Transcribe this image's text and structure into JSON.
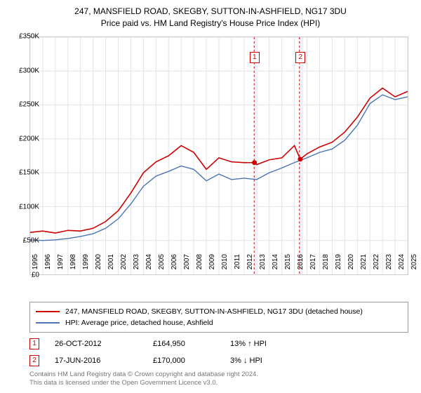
{
  "title_line1": "247, MANSFIELD ROAD, SKEGBY, SUTTON-IN-ASHFIELD, NG17 3DU",
  "title_line2": "Price paid vs. HM Land Registry's House Price Index (HPI)",
  "chart": {
    "type": "line",
    "background_color": "#ffffff",
    "border_color": "#cccccc",
    "grid_color": "#e4e4e4",
    "highlight_band_color": "#ecf1f8",
    "highlight_line_color": "#cc0000",
    "x_min": 1995,
    "x_max": 2025,
    "y_min": 0,
    "y_max": 350000,
    "y_tick_step": 50000,
    "y_tick_labels": [
      "£0",
      "£50K",
      "£100K",
      "£150K",
      "£200K",
      "£250K",
      "£300K",
      "£350K"
    ],
    "x_tick_labels": [
      "1995",
      "1996",
      "1997",
      "1998",
      "1999",
      "2000",
      "2001",
      "2002",
      "2003",
      "2004",
      "2005",
      "2006",
      "2007",
      "2008",
      "2009",
      "2010",
      "2011",
      "2012",
      "2013",
      "2014",
      "2015",
      "2016",
      "2017",
      "2018",
      "2019",
      "2020",
      "2021",
      "2022",
      "2023",
      "2024",
      "2025"
    ],
    "highlight_bands": [
      {
        "x_start": 2012.8,
        "x_end": 2013.1
      },
      {
        "x_start": 2016.4,
        "x_end": 2016.7
      }
    ],
    "sale_markers": [
      {
        "label": "1",
        "x": 2012.82,
        "y_offset": -18
      },
      {
        "label": "2",
        "x": 2016.46,
        "y_offset": -18
      }
    ],
    "sale_points": [
      {
        "x": 2012.82,
        "y": 164950
      },
      {
        "x": 2016.46,
        "y": 170000
      }
    ],
    "series": [
      {
        "name": "price_paid",
        "color": "#cc0000",
        "width": 1.6,
        "data": [
          [
            1995,
            62000
          ],
          [
            1996,
            64000
          ],
          [
            1997,
            61000
          ],
          [
            1998,
            65000
          ],
          [
            1999,
            64000
          ],
          [
            2000,
            68000
          ],
          [
            2001,
            78000
          ],
          [
            2002,
            94000
          ],
          [
            2003,
            120000
          ],
          [
            2004,
            150000
          ],
          [
            2005,
            166000
          ],
          [
            2006,
            175000
          ],
          [
            2007,
            190000
          ],
          [
            2008,
            180000
          ],
          [
            2009,
            155000
          ],
          [
            2010,
            172000
          ],
          [
            2011,
            166000
          ],
          [
            2012,
            165000
          ],
          [
            2012.82,
            164950
          ],
          [
            2013,
            162000
          ],
          [
            2014,
            169000
          ],
          [
            2015,
            172000
          ],
          [
            2016,
            190000
          ],
          [
            2016.46,
            170000
          ],
          [
            2017,
            178000
          ],
          [
            2018,
            188000
          ],
          [
            2019,
            195000
          ],
          [
            2020,
            210000
          ],
          [
            2021,
            232000
          ],
          [
            2022,
            260000
          ],
          [
            2023,
            275000
          ],
          [
            2024,
            262000
          ],
          [
            2025,
            270000
          ]
        ]
      },
      {
        "name": "hpi",
        "color": "#4a74b6",
        "width": 1.4,
        "data": [
          [
            1995,
            51000
          ],
          [
            1996,
            50000
          ],
          [
            1997,
            51000
          ],
          [
            1998,
            53000
          ],
          [
            1999,
            56000
          ],
          [
            2000,
            60000
          ],
          [
            2001,
            68000
          ],
          [
            2002,
            82000
          ],
          [
            2003,
            104000
          ],
          [
            2004,
            130000
          ],
          [
            2005,
            145000
          ],
          [
            2006,
            152000
          ],
          [
            2007,
            160000
          ],
          [
            2008,
            155000
          ],
          [
            2009,
            138000
          ],
          [
            2010,
            148000
          ],
          [
            2011,
            140000
          ],
          [
            2012,
            142000
          ],
          [
            2013,
            140000
          ],
          [
            2014,
            150000
          ],
          [
            2015,
            157000
          ],
          [
            2016,
            165000
          ],
          [
            2017,
            172000
          ],
          [
            2018,
            180000
          ],
          [
            2019,
            185000
          ],
          [
            2020,
            198000
          ],
          [
            2021,
            220000
          ],
          [
            2022,
            252000
          ],
          [
            2023,
            265000
          ],
          [
            2024,
            258000
          ],
          [
            2025,
            262000
          ]
        ]
      }
    ]
  },
  "legend": {
    "series1_label": "247, MANSFIELD ROAD, SKEGBY, SUTTON-IN-ASHFIELD, NG17 3DU (detached house)",
    "series1_color": "#cc0000",
    "series2_label": "HPI: Average price, detached house, Ashfield",
    "series2_color": "#4a74b6"
  },
  "sales": [
    {
      "badge": "1",
      "date": "26-OCT-2012",
      "price": "£164,950",
      "hpi_diff": "13% ↑ HPI"
    },
    {
      "badge": "2",
      "date": "17-JUN-2016",
      "price": "£170,000",
      "hpi_diff": "3% ↓ HPI"
    }
  ],
  "attribution_line1": "Contains HM Land Registry data © Crown copyright and database right 2024.",
  "attribution_line2": "This data is licensed under the Open Government Licence v3.0.",
  "styling": {
    "title_fontsize": 12,
    "axis_label_fontsize": 10,
    "legend_fontsize": 10.5,
    "sales_fontsize": 11,
    "attribution_fontsize": 9.5,
    "attribution_color": "#777777",
    "badge_color": "#cc0000",
    "sale_dot_color": "#cc0000"
  }
}
